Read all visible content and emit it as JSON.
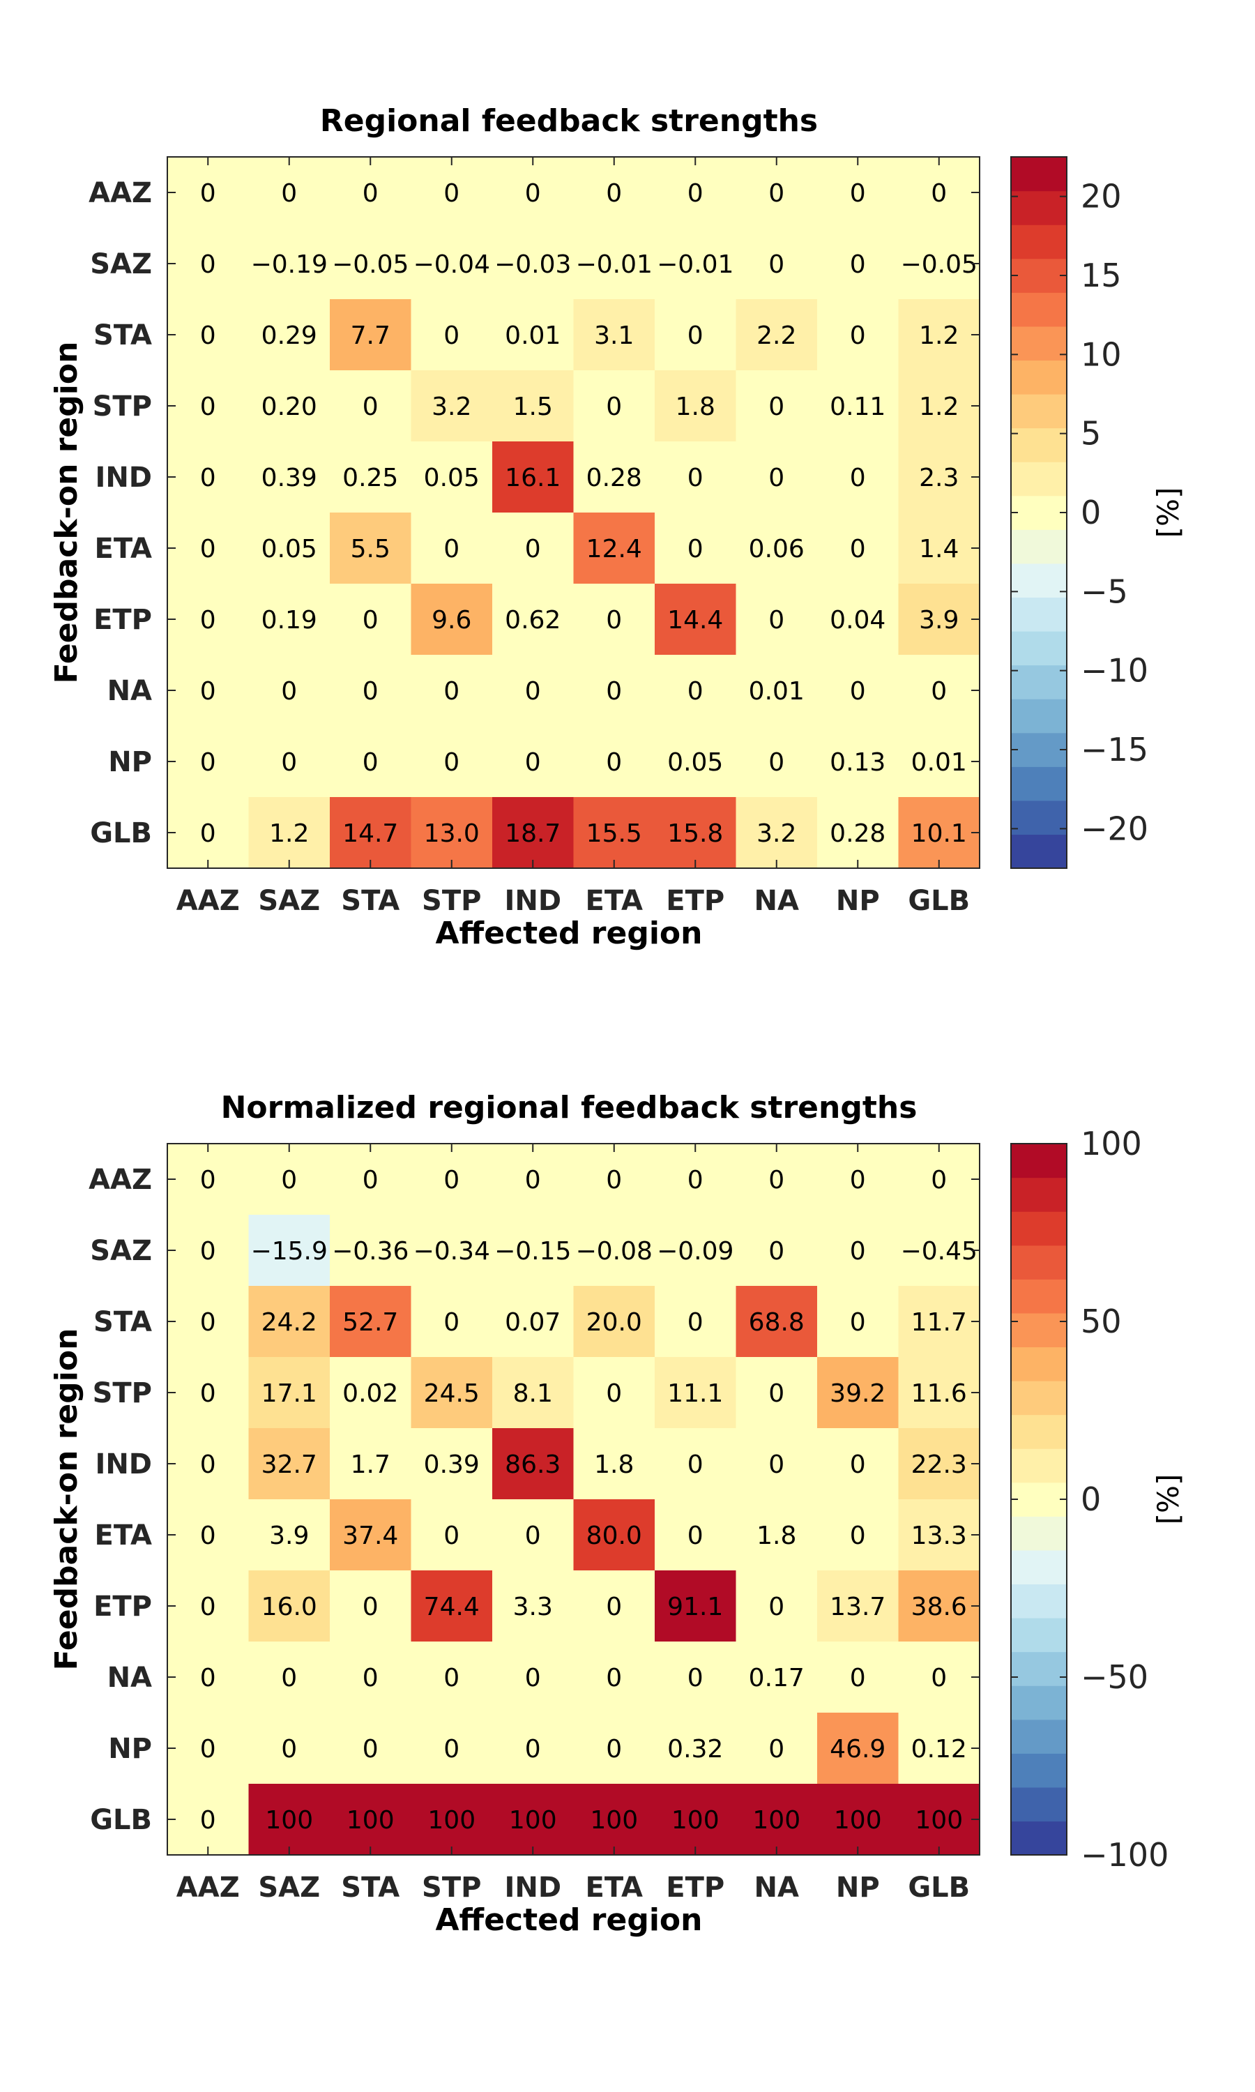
{
  "chart_data": [
    {
      "type": "heatmap",
      "title": "Regional feedback strengths",
      "xlabel": "Affected region",
      "ylabel": "Feedback-on region",
      "x_categories": [
        "AAZ",
        "SAZ",
        "STA",
        "STP",
        "IND",
        "ETA",
        "ETP",
        "NA",
        "NP",
        "GLB"
      ],
      "y_categories": [
        "AAZ",
        "SAZ",
        "STA",
        "STP",
        "IND",
        "ETA",
        "ETP",
        "NA",
        "NP",
        "GLB"
      ],
      "cells": [
        [
          "0",
          "0",
          "0",
          "0",
          "0",
          "0",
          "0",
          "0",
          "0",
          "0"
        ],
        [
          "0",
          "−0.19",
          "−0.05",
          "−0.04",
          "−0.03",
          "−0.01",
          "−0.01",
          "0",
          "0",
          "−0.05"
        ],
        [
          "0",
          "0.29",
          "7.7",
          "0",
          "0.01",
          "3.1",
          "0",
          "2.2",
          "0",
          "1.2"
        ],
        [
          "0",
          "0.20",
          "0",
          "3.2",
          "1.5",
          "0",
          "1.8",
          "0",
          "0.11",
          "1.2"
        ],
        [
          "0",
          "0.39",
          "0.25",
          "0.05",
          "16.1",
          "0.28",
          "0",
          "0",
          "0",
          "2.3"
        ],
        [
          "0",
          "0.05",
          "5.5",
          "0",
          "0",
          "12.4",
          "0",
          "0.06",
          "0",
          "1.4"
        ],
        [
          "0",
          "0.19",
          "0",
          "9.6",
          "0.62",
          "0",
          "14.4",
          "0",
          "0.04",
          "3.9"
        ],
        [
          "0",
          "0",
          "0",
          "0",
          "0",
          "0",
          "0",
          "0.01",
          "0",
          "0"
        ],
        [
          "0",
          "0",
          "0",
          "0",
          "0",
          "0",
          "0.05",
          "0",
          "0.13",
          "0.01"
        ],
        [
          "0",
          "1.2",
          "14.7",
          "13.0",
          "18.7",
          "15.5",
          "15.8",
          "3.2",
          "0.28",
          "10.1"
        ]
      ],
      "colorbar": {
        "range": [
          -22.5,
          22.5
        ],
        "ticks": [
          20,
          15,
          10,
          5,
          0,
          -5,
          -10,
          -15,
          -20
        ],
        "tick_labels": [
          "20",
          "15",
          "10",
          "5",
          "0",
          "−5",
          "−10",
          "−15",
          "−20"
        ],
        "label": "[%]"
      }
    },
    {
      "type": "heatmap",
      "title": "Normalized regional feedback strengths",
      "xlabel": "Affected region",
      "ylabel": "Feedback-on region",
      "x_categories": [
        "AAZ",
        "SAZ",
        "STA",
        "STP",
        "IND",
        "ETA",
        "ETP",
        "NA",
        "NP",
        "GLB"
      ],
      "y_categories": [
        "AAZ",
        "SAZ",
        "STA",
        "STP",
        "IND",
        "ETA",
        "ETP",
        "NA",
        "NP",
        "GLB"
      ],
      "cells": [
        [
          "0",
          "0",
          "0",
          "0",
          "0",
          "0",
          "0",
          "0",
          "0",
          "0"
        ],
        [
          "0",
          "−15.9",
          "−0.36",
          "−0.34",
          "−0.15",
          "−0.08",
          "−0.09",
          "0",
          "0",
          "−0.45"
        ],
        [
          "0",
          "24.2",
          "52.7",
          "0",
          "0.07",
          "20.0",
          "0",
          "68.8",
          "0",
          "11.7"
        ],
        [
          "0",
          "17.1",
          "0.02",
          "24.5",
          "8.1",
          "0",
          "11.1",
          "0",
          "39.2",
          "11.6"
        ],
        [
          "0",
          "32.7",
          "1.7",
          "0.39",
          "86.3",
          "1.8",
          "0",
          "0",
          "0",
          "22.3"
        ],
        [
          "0",
          "3.9",
          "37.4",
          "0",
          "0",
          "80.0",
          "0",
          "1.8",
          "0",
          "13.3"
        ],
        [
          "0",
          "16.0",
          "0",
          "74.4",
          "3.3",
          "0",
          "91.1",
          "0",
          "13.7",
          "38.6"
        ],
        [
          "0",
          "0",
          "0",
          "0",
          "0",
          "0",
          "0",
          "0.17",
          "0",
          "0"
        ],
        [
          "0",
          "0",
          "0",
          "0",
          "0",
          "0",
          "0.32",
          "0",
          "46.9",
          "0.12"
        ],
        [
          "0",
          "100",
          "100",
          "100",
          "100",
          "100",
          "100",
          "100",
          "100",
          "100"
        ]
      ],
      "colorbar": {
        "range": [
          -100,
          100
        ],
        "ticks": [
          100,
          50,
          0,
          -50,
          -100
        ],
        "tick_labels": [
          "100",
          "50",
          "0",
          "−50",
          "−100"
        ],
        "label": "[%]"
      }
    }
  ],
  "colormap": [
    "#313695",
    "#4575b4",
    "#74add1",
    "#abd9e9",
    "#e0f3f8",
    "#ffffbf",
    "#fee090",
    "#fdae61",
    "#f46d43",
    "#d73027",
    "#a50026"
  ]
}
